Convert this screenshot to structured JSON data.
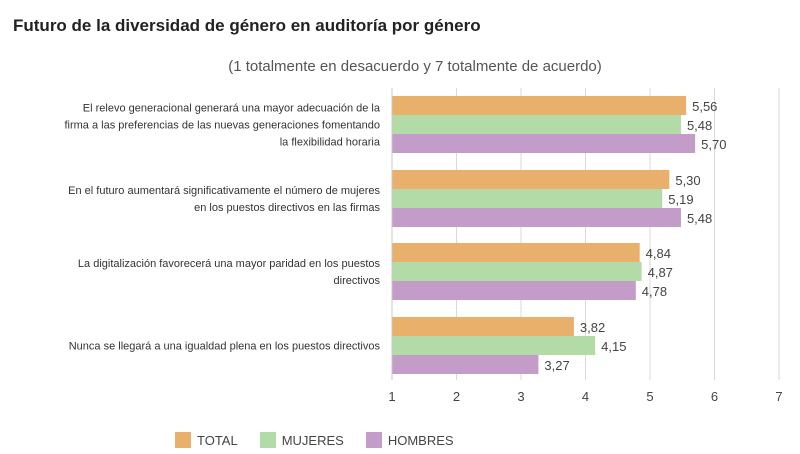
{
  "chart_data": {
    "type": "bar",
    "orientation": "horizontal",
    "title": "Futuro de la diversidad de género en auditoría por género",
    "subtitle": "(1 totalmente en desacuerdo y 7 totalmente de acuerdo)",
    "categories": [
      [
        "El relevo generacional generará una mayor adecuación de la",
        "firma a las preferencias de las nuevas generaciones fomentando",
        "la flexibilidad horaria"
      ],
      [
        "En el futuro aumentará significativamente el número de mujeres",
        "en los puestos directivos en las firmas"
      ],
      [
        "La digitalización favorecerá una mayor paridad en los puestos",
        "directivos"
      ],
      [
        "Nunca se llegará a una igualdad plena en los puestos directivos"
      ]
    ],
    "series": [
      {
        "name": "TOTAL",
        "color": "#e8b06a",
        "values": [
          5.56,
          5.3,
          4.84,
          3.82
        ],
        "labels": [
          "5,56",
          "5,30",
          "4,84",
          "3,82"
        ]
      },
      {
        "name": "MUJERES",
        "color": "#b3dba7",
        "values": [
          5.48,
          5.19,
          4.87,
          4.15
        ],
        "labels": [
          "5,48",
          "5,19",
          "4,87",
          "4,15"
        ]
      },
      {
        "name": "HOMBRES",
        "color": "#c49cc9",
        "values": [
          5.7,
          5.48,
          4.78,
          3.27
        ],
        "labels": [
          "5,70",
          "5,48",
          "4,78",
          "3,27"
        ]
      }
    ],
    "xlim": [
      1,
      7
    ],
    "xticks": [
      "1",
      "2",
      "3",
      "4",
      "5",
      "6",
      "7"
    ],
    "grid": true,
    "legend": "bottom"
  }
}
